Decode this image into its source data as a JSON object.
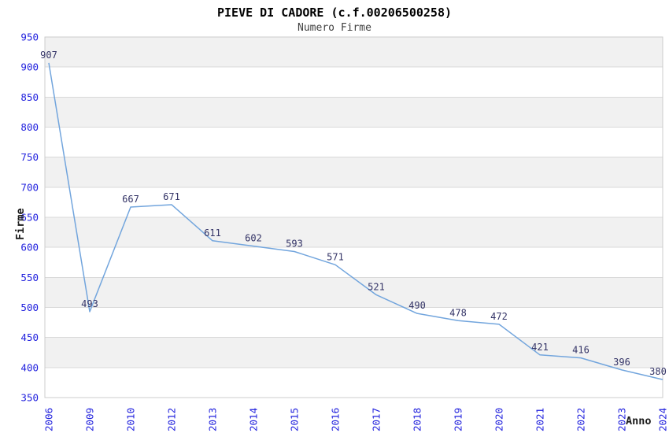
{
  "chart_data": {
    "type": "line",
    "title": "PIEVE DI CADORE (c.f.00206500258)",
    "subtitle": "Numero Firme",
    "xlabel": "Anno",
    "ylabel": "Firme",
    "categories": [
      "2006",
      "2009",
      "2010",
      "2012",
      "2013",
      "2014",
      "2015",
      "2016",
      "2017",
      "2018",
      "2019",
      "2020",
      "2021",
      "2022",
      "2023",
      "2024"
    ],
    "values": [
      907,
      493,
      667,
      671,
      611,
      602,
      593,
      571,
      521,
      490,
      478,
      472,
      421,
      416,
      396,
      380
    ],
    "ylim": [
      350,
      950
    ],
    "ytick_step": 50,
    "grid": "horizontal",
    "bands": "alternating-gray",
    "legend": "none",
    "data_labels": "above-points",
    "colors": {
      "line": "#72a5dd",
      "tick_label": "#1f1fdd",
      "data_label": "#333366",
      "band": "#f1f1f1",
      "grid": "#d9d9d9",
      "border": "#cccccc",
      "title": "#000000",
      "subtitle": "#3f3f3f",
      "axis_title": "#1a1a1a",
      "background": "#ffffff"
    }
  }
}
